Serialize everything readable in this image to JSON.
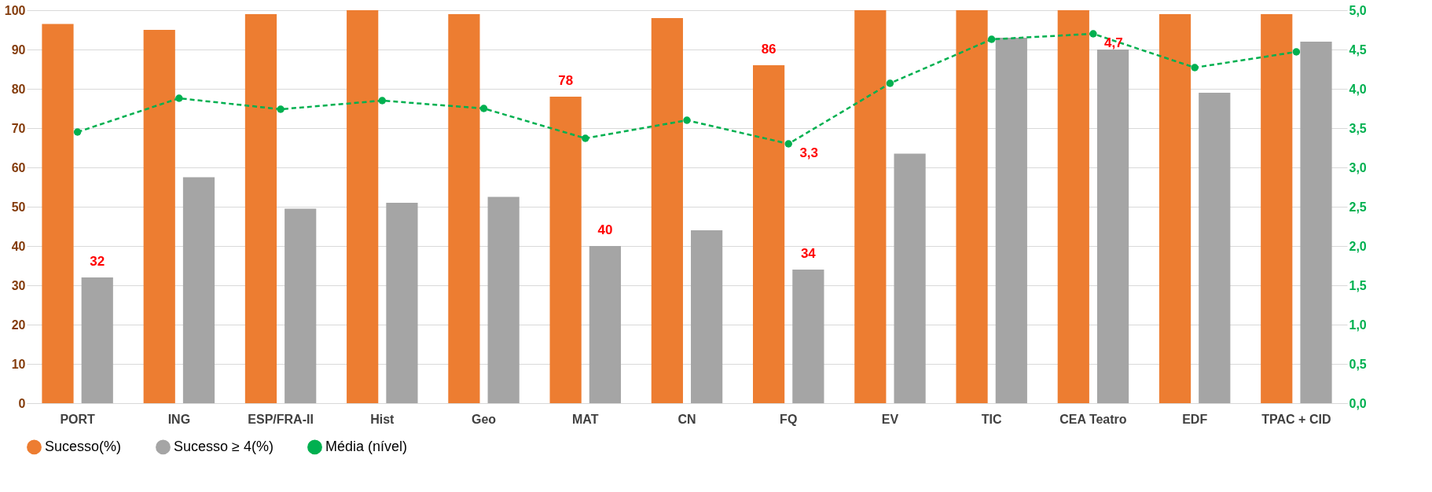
{
  "chart_data": {
    "type": "bar",
    "categories": [
      "PORT",
      "ING",
      "ESP/FRA-II",
      "Hist",
      "Geo",
      "MAT",
      "CN",
      "FQ",
      "EV",
      "TIC",
      "CEA Teatro",
      "EDF",
      "TPAC + CID"
    ],
    "series": [
      {
        "name": "Sucesso(%)",
        "color": "#ed7d31",
        "values": [
          96.5,
          95,
          99,
          100,
          99,
          78,
          98,
          86,
          100,
          100,
          100,
          99,
          99
        ],
        "value_labels": [
          null,
          null,
          null,
          null,
          null,
          "78",
          null,
          "86",
          null,
          null,
          null,
          null,
          null
        ]
      },
      {
        "name": "Sucesso ≥ 4(%)",
        "color": "#a5a5a5",
        "values": [
          32,
          57.5,
          49.5,
          51,
          52.5,
          40,
          44,
          34,
          63.5,
          93,
          90,
          79,
          92
        ],
        "value_labels": [
          "32",
          null,
          null,
          null,
          null,
          "40",
          null,
          "34",
          null,
          null,
          null,
          null,
          null
        ]
      },
      {
        "name": "Média (nível)",
        "type": "line",
        "axis": "y2",
        "color": "#00b050",
        "marker": "circle",
        "line_style": "dashed",
        "values": [
          3.45,
          3.88,
          3.74,
          3.85,
          3.75,
          3.37,
          3.6,
          3.3,
          4.07,
          4.63,
          4.7,
          4.27,
          4.47
        ],
        "value_labels": [
          null,
          null,
          null,
          null,
          null,
          null,
          null,
          "3,3",
          null,
          null,
          "4,7",
          null,
          null
        ]
      }
    ],
    "ylim": [
      0,
      100
    ],
    "yticks": [
      0,
      10,
      20,
      30,
      40,
      50,
      60,
      70,
      80,
      90,
      100
    ],
    "y2lim": [
      0,
      5
    ],
    "y2ticks": [
      {
        "value": 0,
        "label": "0,0"
      },
      {
        "value": 0.5,
        "label": "0,5"
      },
      {
        "value": 1,
        "label": "1,0"
      },
      {
        "value": 1.5,
        "label": "1,5"
      },
      {
        "value": 2,
        "label": "2,0"
      },
      {
        "value": 2.5,
        "label": "2,5"
      },
      {
        "value": 3,
        "label": "3,0"
      },
      {
        "value": 3.5,
        "label": "3,5"
      },
      {
        "value": 4,
        "label": "4,0"
      },
      {
        "value": 4.5,
        "label": "4,5"
      },
      {
        "value": 5,
        "label": "5,0"
      }
    ],
    "grid": "y",
    "legend": "bottom"
  }
}
